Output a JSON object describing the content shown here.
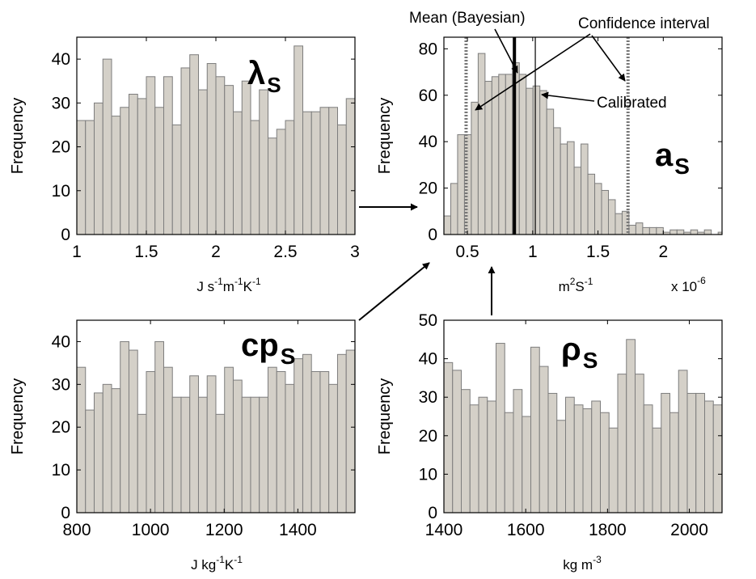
{
  "chart_data": [
    {
      "id": "lambda",
      "type": "bar",
      "title": "λ",
      "title_sub": "S",
      "ylabel": "Frequency",
      "xlabel_parts": [
        "J s",
        "-1",
        "m",
        "-1",
        "K",
        "-1"
      ],
      "xlim": [
        1,
        3
      ],
      "ylim": [
        0,
        45
      ],
      "xticks": [
        "1",
        "1.5",
        "2",
        "2.5",
        "3"
      ],
      "yticks": [
        "0",
        "10",
        "20",
        "30",
        "40"
      ],
      "bin_start": 1.0,
      "bin_width": 0.0625,
      "values": [
        26,
        26,
        30,
        40,
        27,
        29,
        32,
        31,
        36,
        29,
        36,
        25,
        38,
        41,
        33,
        39,
        36,
        34,
        28,
        35,
        26,
        33,
        22,
        24,
        26,
        43,
        28,
        28,
        29,
        29,
        25,
        31
      ]
    },
    {
      "id": "as",
      "type": "bar",
      "title": "a",
      "title_sub": "S",
      "ylabel": "Frequency",
      "xlabel_parts": [
        "m",
        "2",
        "S",
        "-1"
      ],
      "xscale_label": "x 10",
      "xscale_exp": "-6",
      "xlim": [
        0.32,
        2.45
      ],
      "ylim": [
        0,
        85
      ],
      "xticks": [
        "0.5",
        "1",
        "1.5",
        "2"
      ],
      "yticks": [
        "0",
        "20",
        "40",
        "60",
        "80"
      ],
      "bin_start": 0.32,
      "bin_width": 0.0525,
      "values": [
        8,
        22,
        43,
        43,
        57,
        78,
        66,
        68,
        69,
        69,
        74,
        69,
        63,
        64,
        62,
        54,
        46,
        39,
        40,
        29,
        39,
        26,
        22,
        19,
        15,
        9,
        10,
        4,
        5,
        3,
        3,
        3,
        1,
        2,
        2,
        1,
        2,
        1,
        2,
        0,
        1
      ],
      "markers": {
        "mean_bayesian": 0.86,
        "calibrated": 1.02,
        "confidence_interval": [
          0.49,
          1.73
        ]
      },
      "annotations": {
        "mean": "Mean (Bayesian)",
        "confidence": "Confidence interval",
        "calibrated": "Calibrated"
      }
    },
    {
      "id": "cp",
      "type": "bar",
      "title": "cp",
      "title_sub": "S",
      "ylabel": "Frequency",
      "xlabel_parts": [
        "J kg",
        "-1",
        "K",
        "-1"
      ],
      "xlim": [
        800,
        1555
      ],
      "ylim": [
        0,
        45
      ],
      "xticks": [
        "800",
        "1000",
        "1200",
        "1400"
      ],
      "yticks": [
        "0",
        "10",
        "20",
        "30",
        "40"
      ],
      "bin_start": 800,
      "bin_width": 23.59,
      "values": [
        34,
        24,
        28,
        30,
        29,
        40,
        38,
        23,
        33,
        40,
        34,
        27,
        27,
        32,
        27,
        32,
        23,
        34,
        31,
        27,
        27,
        27,
        34,
        33,
        30,
        36,
        37,
        33,
        33,
        30,
        37,
        38
      ]
    },
    {
      "id": "rho",
      "type": "bar",
      "title": "ρ",
      "title_sub": "S",
      "ylabel": "Frequency",
      "xlabel_parts": [
        "kg m",
        "-3"
      ],
      "xlim": [
        1400,
        2080
      ],
      "ylim": [
        0,
        50
      ],
      "xticks": [
        "1400",
        "1600",
        "1800",
        "2000"
      ],
      "yticks": [
        "0",
        "10",
        "20",
        "30",
        "40",
        "50"
      ],
      "bin_start": 1400,
      "bin_width": 21.25,
      "values": [
        39,
        37,
        32,
        28,
        30,
        29,
        44,
        26,
        32,
        25,
        43,
        38,
        31,
        24,
        30,
        28,
        27,
        29,
        26,
        22,
        36,
        45,
        36,
        28,
        22,
        31,
        26,
        37,
        31,
        31,
        29,
        28
      ]
    }
  ]
}
